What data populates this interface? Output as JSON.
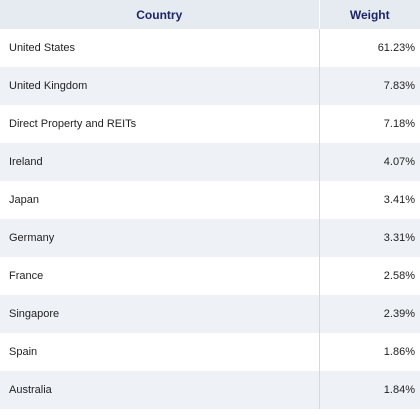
{
  "table": {
    "headers": {
      "country": "Country",
      "weight": "Weight"
    },
    "rows": [
      {
        "country": "United States",
        "weight": "61.23%"
      },
      {
        "country": "United Kingdom",
        "weight": "7.83%"
      },
      {
        "country": "Direct Property and REITs",
        "weight": "7.18%"
      },
      {
        "country": "Ireland",
        "weight": "4.07%"
      },
      {
        "country": "Japan",
        "weight": "3.41%"
      },
      {
        "country": "Germany",
        "weight": "3.31%"
      },
      {
        "country": "France",
        "weight": "2.58%"
      },
      {
        "country": "Singapore",
        "weight": "2.39%"
      },
      {
        "country": "Spain",
        "weight": "1.86%"
      },
      {
        "country": "Australia",
        "weight": "1.84%"
      }
    ]
  }
}
